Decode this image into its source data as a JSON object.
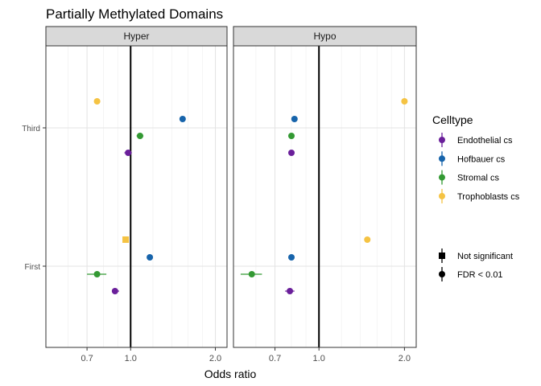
{
  "chart_data": {
    "type": "scatter",
    "title": "Partially Methylated Domains",
    "xlabel": "Odds ratio",
    "ylabel": "",
    "x_scale": "log",
    "xlim": [
      0.5,
      2.2
    ],
    "x_ticks": [
      "0.7",
      "1.0",
      "2.0"
    ],
    "x_tick_values": [
      0.7,
      1.0,
      2.0
    ],
    "reference_line": 1.0,
    "y_categories": [
      "First",
      "Third"
    ],
    "grid": true,
    "legend_position": "right",
    "panels": [
      {
        "name": "Hyper",
        "series": [
          {
            "name": "Endothelial cs",
            "color": "#6a1f9a",
            "points": [
              {
                "y": "Third",
                "x": 0.98,
                "lo": 0.95,
                "hi": 1.01,
                "significance": "FDR < 0.01"
              },
              {
                "y": "First",
                "x": 0.88,
                "lo": 0.86,
                "hi": 0.91,
                "significance": "FDR < 0.01"
              }
            ]
          },
          {
            "name": "Hofbauer cs",
            "color": "#1764ab",
            "points": [
              {
                "y": "Third",
                "x": 1.53,
                "lo": 1.51,
                "hi": 1.55,
                "significance": "FDR < 0.01"
              },
              {
                "y": "First",
                "x": 1.17,
                "lo": 1.15,
                "hi": 1.19,
                "significance": "FDR < 0.01"
              }
            ]
          },
          {
            "name": "Stromal cs",
            "color": "#339933",
            "points": [
              {
                "y": "Third",
                "x": 1.08,
                "lo": 1.05,
                "hi": 1.11,
                "significance": "FDR < 0.01"
              },
              {
                "y": "First",
                "x": 0.76,
                "lo": 0.7,
                "hi": 0.82,
                "significance": "FDR < 0.01"
              }
            ]
          },
          {
            "name": "Trophoblasts cs",
            "color": "#f5c343",
            "points": [
              {
                "y": "Third",
                "x": 0.76,
                "lo": 0.755,
                "hi": 0.765,
                "significance": "FDR < 0.01"
              },
              {
                "y": "First",
                "x": 0.96,
                "lo": 0.94,
                "hi": 0.98,
                "significance": "Not significant"
              }
            ]
          }
        ]
      },
      {
        "name": "Hypo",
        "series": [
          {
            "name": "Endothelial cs",
            "color": "#6a1f9a",
            "points": [
              {
                "y": "Third",
                "x": 0.8,
                "lo": 0.79,
                "hi": 0.81,
                "significance": "FDR < 0.01"
              },
              {
                "y": "First",
                "x": 0.79,
                "lo": 0.76,
                "hi": 0.82,
                "significance": "FDR < 0.01"
              }
            ]
          },
          {
            "name": "Hofbauer cs",
            "color": "#1764ab",
            "points": [
              {
                "y": "Third",
                "x": 0.82,
                "lo": 0.81,
                "hi": 0.83,
                "significance": "FDR < 0.01"
              },
              {
                "y": "First",
                "x": 0.8,
                "lo": 0.79,
                "hi": 0.81,
                "significance": "FDR < 0.01"
              }
            ]
          },
          {
            "name": "Stromal cs",
            "color": "#339933",
            "points": [
              {
                "y": "Third",
                "x": 0.8,
                "lo": 0.79,
                "hi": 0.81,
                "significance": "FDR < 0.01"
              },
              {
                "y": "First",
                "x": 0.58,
                "lo": 0.53,
                "hi": 0.63,
                "significance": "FDR < 0.01"
              }
            ]
          },
          {
            "name": "Trophoblasts cs",
            "color": "#f5c343",
            "points": [
              {
                "y": "Third",
                "x": 2.0,
                "lo": 1.99,
                "hi": 2.01,
                "significance": "FDR < 0.01"
              },
              {
                "y": "First",
                "x": 1.48,
                "lo": 1.47,
                "hi": 1.49,
                "significance": "FDR < 0.01"
              }
            ]
          }
        ]
      }
    ],
    "legend": {
      "title": "Celltype",
      "entries": [
        "Endothelial cs",
        "Hofbauer cs",
        "Stromal cs",
        "Trophoblasts cs"
      ],
      "shape_entries": [
        {
          "label": "Not significant",
          "shape": "square"
        },
        {
          "label": "FDR < 0.01",
          "shape": "circle"
        }
      ]
    }
  }
}
